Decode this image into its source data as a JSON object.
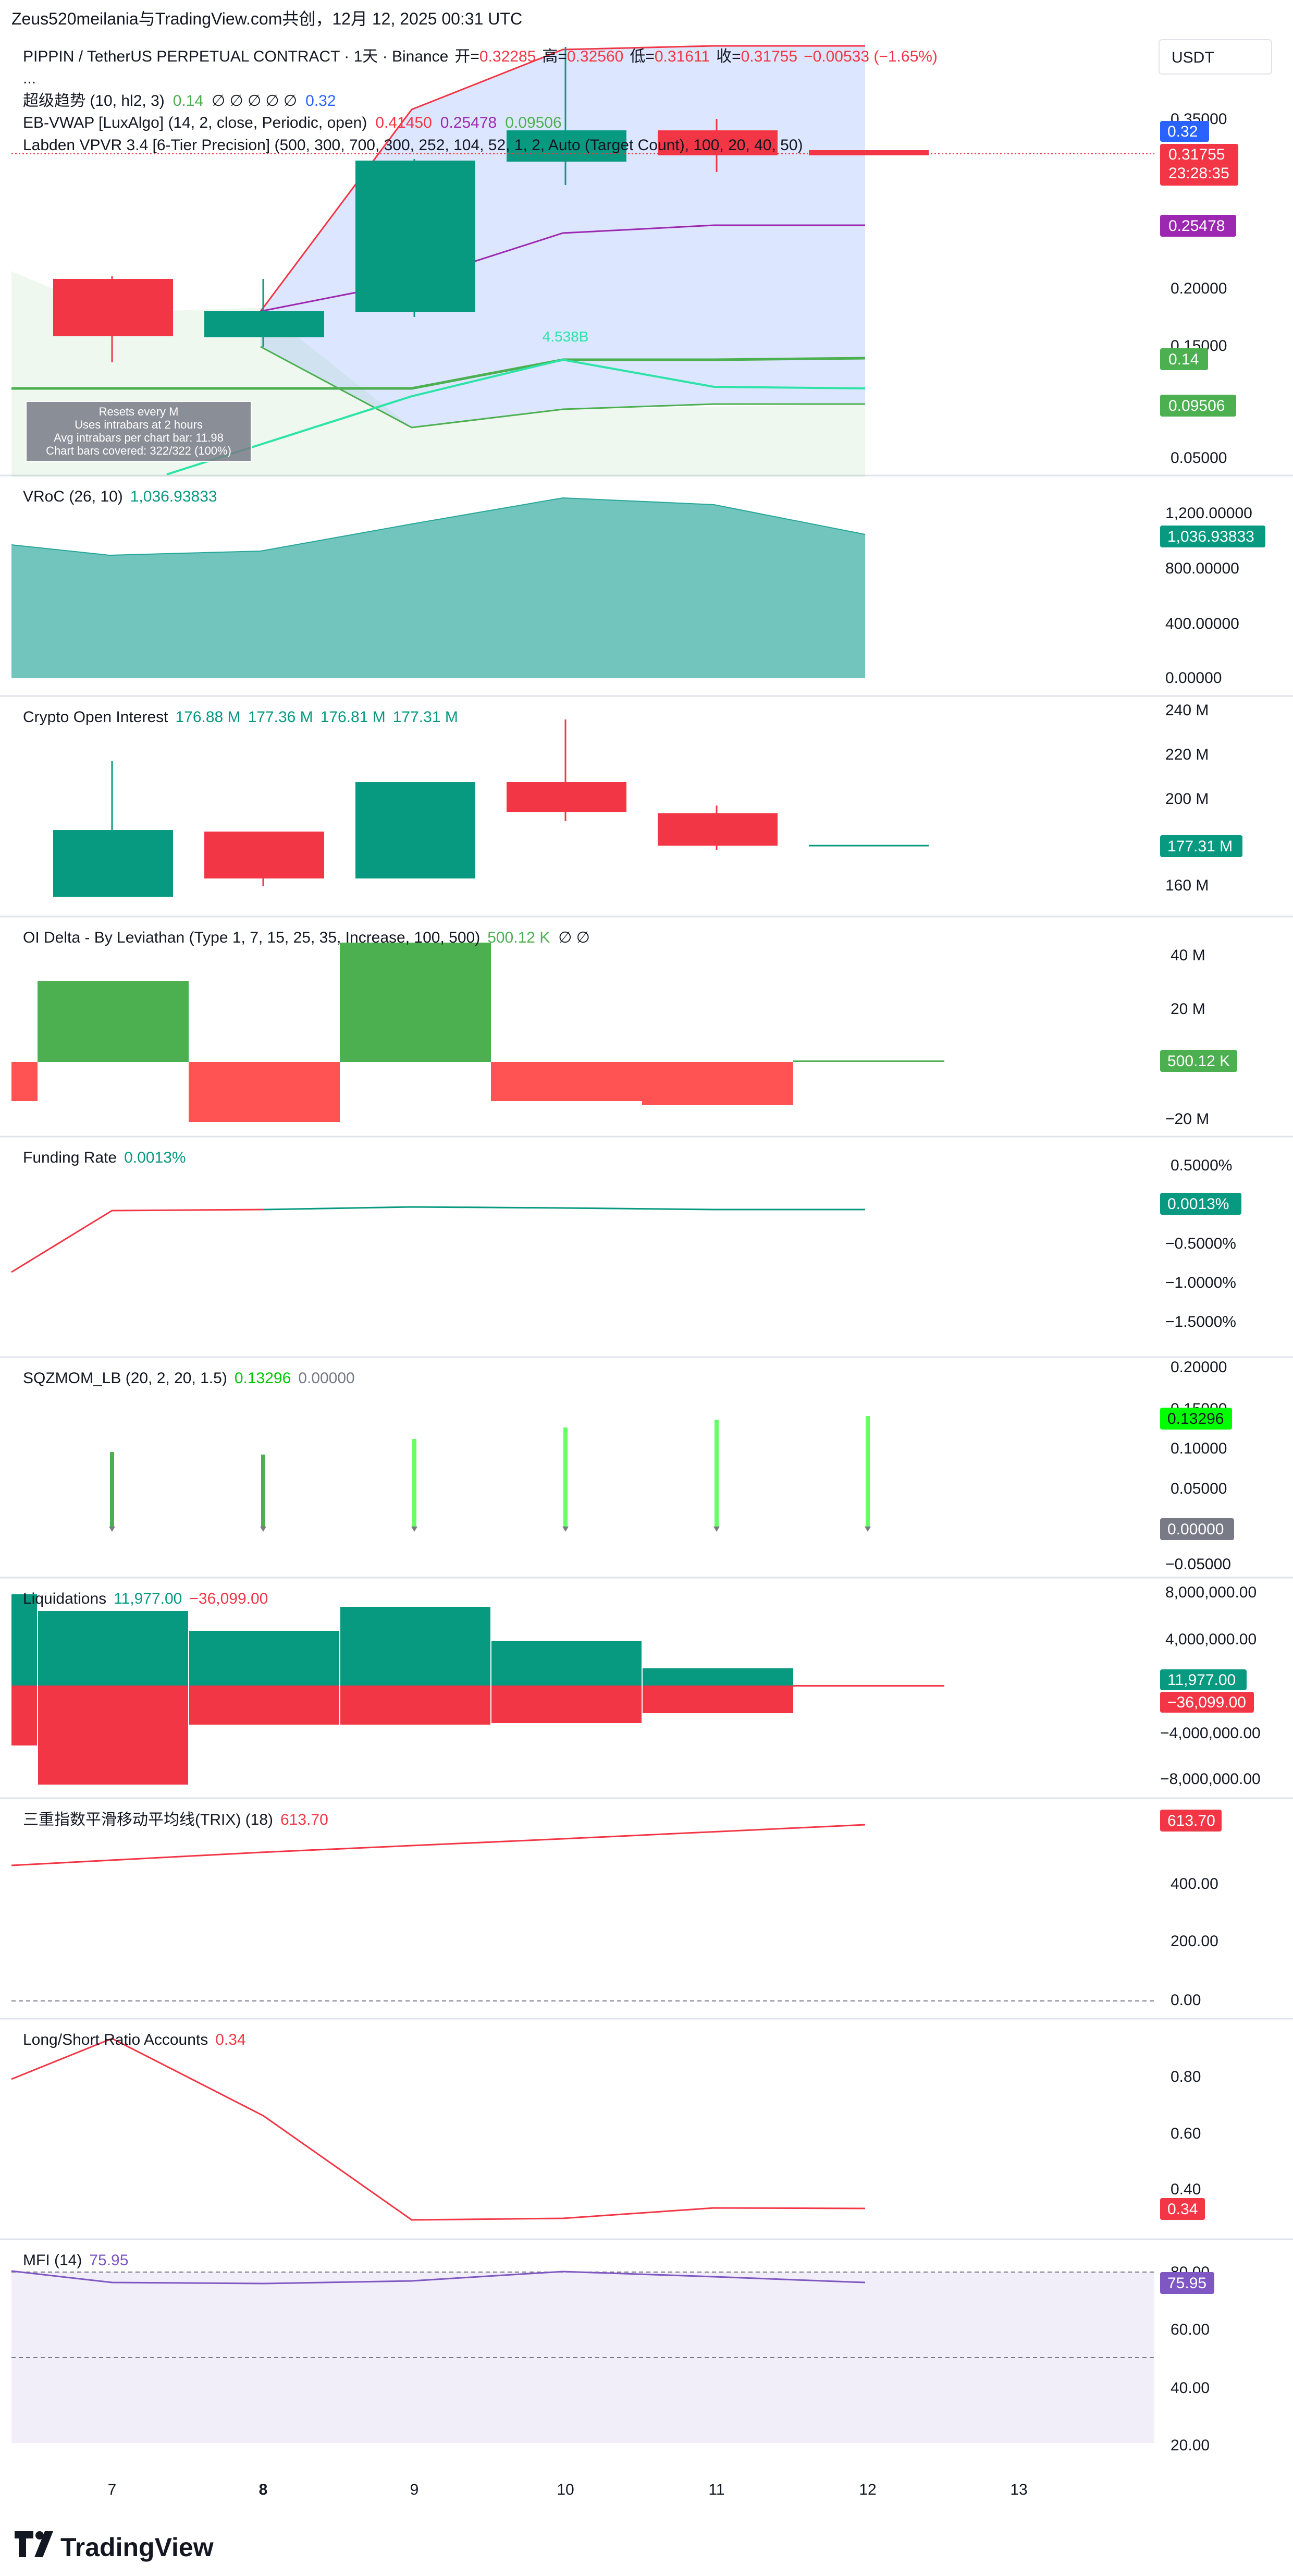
{
  "header": {
    "title": "Zeus520meilania与TradingView.com共创，12月 12, 2025 00:31 UTC"
  },
  "currency": "USDT",
  "footer": {
    "brand": "TradingView"
  },
  "colors": {
    "up": "#089981",
    "down": "#f23645",
    "purple": "#9c27b0",
    "green": "#4caf50",
    "blue": "#2962ff",
    "grid": "#f0f3fa"
  },
  "time_axis": {
    "labels": [
      "7",
      "8",
      "9",
      "10",
      "11",
      "12",
      "13"
    ],
    "bold": "8"
  },
  "main": {
    "symbol": "PIPPIN / TetherUS PERPETUAL CONTRACT · 1天 · Binance",
    "ohlc": [
      {
        "label": "开=",
        "value": "0.32285"
      },
      {
        "label": "高=",
        "value": "0.32560"
      },
      {
        "label": "低=",
        "value": "0.31611"
      },
      {
        "label": "收=",
        "value": "0.31755"
      },
      {
        "label": "",
        "value": "−0.00533 (−1.65%)"
      }
    ],
    "ellipsis": "...",
    "supertrend": {
      "name": "超级趋势 (10, hl2, 3)",
      "v1": "0.14",
      "symbols": "∅ ∅ ∅ ∅ ∅",
      "v2": "0.32"
    },
    "vwap": {
      "name": "EB-VWAP [LuxAlgo] (14, 2, close, Periodic, open)",
      "v1": "0.41450",
      "v2": "0.25478",
      "v3": "0.09506"
    },
    "vpvr": {
      "name": "Labden VPVR 3.4 [6-Tier Precision] (500, 300, 700, 300, 252, 104, 52, 1, 2, Auto (Target Count), 100, 20, 40, 50)"
    },
    "info_box": [
      "Resets every M",
      "Uses intrabars at 2 hours",
      "Avg intrabars per chart bar: 11.98",
      "Chart bars covered: 322/322 (100%)"
    ],
    "vpvr_label": "4.538B",
    "axis_labels": [
      "0.35000",
      "0.20000",
      "0.15000",
      "0.05000"
    ],
    "price_tags": [
      {
        "text": "0.32",
        "color": "#2962ff"
      },
      {
        "text": "0.31755",
        "color": "#f23645"
      },
      {
        "text": "23:28:35",
        "color": "#f23645"
      },
      {
        "text": "0.25478",
        "color": "#9c27b0"
      },
      {
        "text": "0.14",
        "color": "#4caf50"
      },
      {
        "text": "0.09506",
        "color": "#4caf50"
      }
    ]
  },
  "vroc": {
    "name": "VRoC (26, 10)",
    "value": "1,036.93833",
    "axis_labels": [
      "1,200.00000",
      "800.00000",
      "400.00000",
      "0.00000"
    ],
    "tag": "1,036.93833"
  },
  "oi": {
    "name": "Crypto Open Interest",
    "values": [
      "176.88 M",
      "177.36 M",
      "176.81 M",
      "177.31 M"
    ],
    "axis_labels": [
      "240 M",
      "220 M",
      "200 M",
      "160 M"
    ],
    "tag": "177.31 M"
  },
  "oidelta": {
    "name": "OI Delta - By Leviathan (Type 1, 7, 15, 25, 35, Increase, 100, 500)",
    "value": "500.12 K",
    "symbols": "∅ ∅",
    "axis_labels": [
      "40 M",
      "20 M",
      "−20 M"
    ],
    "tag": "500.12 K"
  },
  "funding": {
    "name": "Funding Rate",
    "value": "0.0013%",
    "axis_labels": [
      "0.5000%",
      "−0.5000%",
      "−1.0000%",
      "−1.5000%"
    ],
    "tag": "0.0013%"
  },
  "sqz": {
    "name": "SQZMOM_LB (20, 2, 20, 1.5)",
    "v1": "0.13296",
    "v2": "0.00000",
    "axis_labels": [
      "0.20000",
      "0.15000",
      "0.10000",
      "0.05000",
      "−0.05000"
    ],
    "tags": [
      "0.13296",
      "0.00000"
    ]
  },
  "liq": {
    "name": "Liquidations",
    "v1": "11,977.00",
    "v2": "−36,099.00",
    "axis_labels": [
      "8,000,000.00",
      "4,000,000.00",
      "−4,000,000.00",
      "−8,000,000.00"
    ],
    "tags": [
      "11,977.00",
      "−36,099.00"
    ]
  },
  "trix": {
    "name": "三重指数平滑移动平均线(TRIX) (18)",
    "value": "613.70",
    "axis_labels": [
      "400.00",
      "200.00",
      "0.00"
    ],
    "tag": "613.70"
  },
  "lsr": {
    "name": "Long/Short Ratio Accounts",
    "value": "0.34",
    "axis_labels": [
      "0.80",
      "0.60",
      "0.40"
    ],
    "tag": "0.34"
  },
  "mfi": {
    "name": "MFI (14)",
    "value": "75.95",
    "axis_labels": [
      "80.00",
      "60.00",
      "40.00",
      "20.00"
    ],
    "tag": "75.95"
  }
}
